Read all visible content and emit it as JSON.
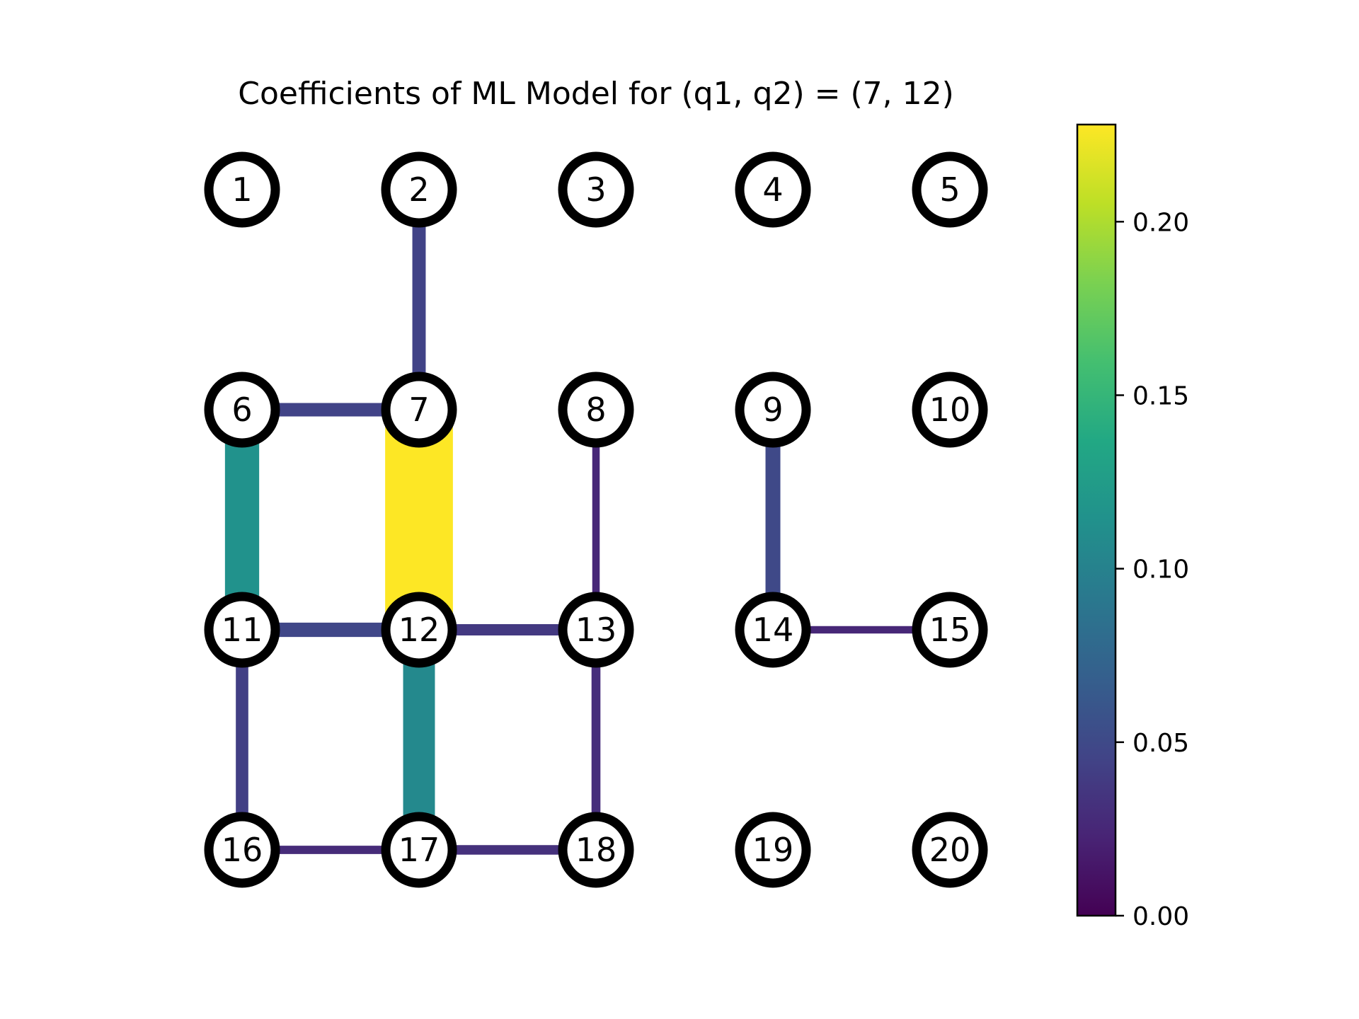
{
  "chart_data": {
    "type": "network",
    "title": "Coefficients of ML Model for (q1, q2) = (7, 12)",
    "grid": {
      "rows": 4,
      "cols": 5
    },
    "nodes": [
      {
        "id": 1,
        "label": "1"
      },
      {
        "id": 2,
        "label": "2"
      },
      {
        "id": 3,
        "label": "3"
      },
      {
        "id": 4,
        "label": "4"
      },
      {
        "id": 5,
        "label": "5"
      },
      {
        "id": 6,
        "label": "6"
      },
      {
        "id": 7,
        "label": "7"
      },
      {
        "id": 8,
        "label": "8"
      },
      {
        "id": 9,
        "label": "9"
      },
      {
        "id": 10,
        "label": "10"
      },
      {
        "id": 11,
        "label": "11"
      },
      {
        "id": 12,
        "label": "12"
      },
      {
        "id": 13,
        "label": "13"
      },
      {
        "id": 14,
        "label": "14"
      },
      {
        "id": 15,
        "label": "15"
      },
      {
        "id": 16,
        "label": "16"
      },
      {
        "id": 17,
        "label": "17"
      },
      {
        "id": 18,
        "label": "18"
      },
      {
        "id": 19,
        "label": "19"
      },
      {
        "id": 20,
        "label": "20"
      }
    ],
    "edges": [
      {
        "source": 2,
        "target": 7,
        "value": 0.045
      },
      {
        "source": 6,
        "target": 7,
        "value": 0.045
      },
      {
        "source": 6,
        "target": 11,
        "value": 0.115
      },
      {
        "source": 7,
        "target": 12,
        "value": 0.228
      },
      {
        "source": 8,
        "target": 13,
        "value": 0.025
      },
      {
        "source": 9,
        "target": 14,
        "value": 0.05
      },
      {
        "source": 11,
        "target": 12,
        "value": 0.048
      },
      {
        "source": 12,
        "target": 13,
        "value": 0.038
      },
      {
        "source": 11,
        "target": 16,
        "value": 0.042
      },
      {
        "source": 12,
        "target": 17,
        "value": 0.107
      },
      {
        "source": 13,
        "target": 18,
        "value": 0.03
      },
      {
        "source": 14,
        "target": 15,
        "value": 0.025
      },
      {
        "source": 16,
        "target": 17,
        "value": 0.028
      },
      {
        "source": 17,
        "target": 18,
        "value": 0.032
      }
    ],
    "colorbar": {
      "colormap": "viridis",
      "range": [
        0,
        0.228
      ],
      "ticks": [
        0,
        0.05,
        0.1,
        0.15,
        0.2
      ],
      "tick_labels": [
        "0.00",
        "0.05",
        "0.10",
        "0.15",
        "0.20"
      ]
    }
  }
}
